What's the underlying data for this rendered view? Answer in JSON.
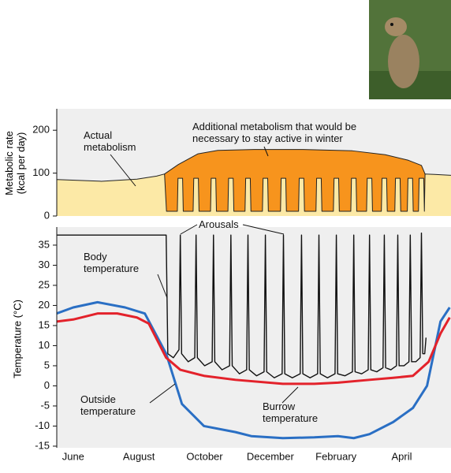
{
  "chart_data": [
    {
      "type": "area",
      "ylabel": "Metabolic rate (kcal per day)",
      "annotations": [
        "Actual metabolism",
        "Additional metabolism that would be necessary to stay active in winter"
      ],
      "xlim": [
        -0.5,
        11.5
      ],
      "ylim": [
        0,
        250
      ],
      "yticks": [
        0,
        100,
        200
      ],
      "grid": false,
      "series": [
        {
          "color": "#f7941d",
          "x": [
            2.78,
            3.2,
            3.8,
            4.4,
            5.5,
            7.0,
            8.5,
            9.5,
            10.2,
            10.6,
            10.71
          ],
          "values": [
            98,
            120,
            145,
            153,
            155,
            155,
            152,
            143,
            130,
            118,
            98
          ]
        },
        {
          "color": "#fce9a6",
          "x": [
            -0.5,
            0.85,
            1.94,
            2.54,
            2.78,
            2.84,
            3.17,
            3.19,
            3.33,
            3.35,
            3.65,
            3.67,
            3.81,
            3.83,
            4.18,
            4.2,
            4.34,
            4.36,
            4.71,
            4.73,
            4.87,
            4.89,
            5.23,
            5.25,
            5.39,
            5.41,
            5.76,
            5.78,
            5.92,
            5.94,
            6.31,
            6.33,
            6.47,
            6.49,
            6.86,
            6.88,
            7.02,
            7.04,
            7.39,
            7.41,
            7.55,
            7.57,
            7.92,
            7.94,
            8.08,
            8.1,
            8.45,
            8.47,
            8.61,
            8.63,
            8.93,
            8.95,
            9.09,
            9.11,
            9.38,
            9.4,
            9.54,
            9.56,
            9.79,
            9.81,
            9.95,
            9.97,
            10.17,
            10.19,
            10.33,
            10.35,
            10.51,
            10.53,
            10.67,
            10.69,
            10.71,
            11.0,
            11.5
          ],
          "values": [
            85,
            81,
            86,
            93,
            98,
            11,
            11,
            88,
            88,
            11,
            11,
            88,
            88,
            11,
            11,
            88,
            88,
            11,
            11,
            88,
            88,
            11,
            11,
            88,
            88,
            11,
            11,
            88,
            88,
            11,
            11,
            88,
            88,
            11,
            11,
            88,
            88,
            11,
            11,
            88,
            88,
            11,
            11,
            88,
            88,
            11,
            11,
            88,
            88,
            11,
            11,
            88,
            88,
            11,
            11,
            88,
            88,
            11,
            11,
            88,
            88,
            11,
            11,
            88,
            88,
            11,
            11,
            88,
            88,
            11,
            98,
            97,
            95
          ]
        }
      ]
    },
    {
      "type": "line",
      "ylabel": "Temperature (°C)",
      "annotations": [
        "Arousals"
      ],
      "xlim": [
        -0.5,
        11.5
      ],
      "ylim": [
        -15.4,
        39.5
      ],
      "yticks": [
        -15,
        -10,
        -5,
        0,
        5,
        10,
        15,
        20,
        25,
        30,
        35
      ],
      "grid": false,
      "xticks": [
        {
          "value": 0,
          "label": "June"
        },
        {
          "value": 2,
          "label": "August"
        },
        {
          "value": 4,
          "label": "October"
        },
        {
          "value": 6,
          "label": "December"
        },
        {
          "value": 8,
          "label": "February"
        },
        {
          "value": 10,
          "label": "April"
        }
      ],
      "series": [
        {
          "name": "Body temperature",
          "color": "#111111",
          "x": [
            -0.5,
            2.83,
            2.88,
            3.05,
            3.22,
            3.26,
            3.3,
            3.5,
            3.7,
            3.74,
            3.78,
            4.0,
            4.23,
            4.27,
            4.31,
            4.53,
            4.76,
            4.8,
            4.84,
            5.06,
            5.28,
            5.32,
            5.36,
            5.58,
            5.81,
            5.85,
            5.89,
            6.12,
            6.36,
            6.4,
            6.44,
            6.67,
            6.91,
            6.95,
            6.99,
            7.21,
            7.44,
            7.48,
            7.52,
            7.74,
            7.97,
            8.01,
            8.05,
            8.27,
            8.5,
            8.54,
            8.58,
            8.78,
            8.98,
            9.02,
            9.06,
            9.24,
            9.43,
            9.47,
            9.51,
            9.67,
            9.84,
            9.88,
            9.92,
            10.07,
            10.22,
            10.26,
            10.3,
            10.43,
            10.56,
            10.6,
            10.64,
            10.7,
            10.74
          ],
          "values": [
            37.5,
            37.5,
            8,
            7,
            9,
            37.5,
            8,
            6,
            7,
            37.5,
            7,
            5,
            6,
            37.5,
            6,
            4,
            5,
            37.5,
            5,
            3,
            4,
            37.5,
            4,
            2.5,
            3.5,
            37.5,
            3.5,
            2,
            3,
            37.5,
            3,
            2,
            3,
            37.5,
            3,
            2,
            3,
            37.5,
            3,
            2,
            3,
            37.5,
            3,
            2.5,
            3.5,
            37.5,
            3.5,
            3,
            4,
            37.5,
            4,
            3.5,
            4.5,
            37.5,
            4.5,
            4,
            5,
            37.5,
            5,
            5,
            6,
            37.5,
            6,
            6,
            7,
            38,
            8,
            8,
            12
          ]
        },
        {
          "name": "Outside temperature",
          "color": "#2a6fc4",
          "x": [
            -0.5,
            0,
            0.74,
            1.58,
            2.18,
            2.83,
            3.31,
            3.98,
            4.94,
            5.42,
            6.38,
            7.34,
            8.06,
            8.54,
            9.02,
            9.74,
            10.34,
            10.77,
            11.18,
            11.46
          ],
          "values": [
            18,
            19.5,
            20.8,
            19.5,
            18,
            8,
            -4.5,
            -10,
            -11.5,
            -12.5,
            -13,
            -12.8,
            -12.5,
            -13,
            -12,
            -9,
            -5.5,
            0,
            16,
            19.5
          ]
        },
        {
          "name": "Burrow temperature",
          "color": "#e3222b",
          "x": [
            -0.5,
            0,
            0.74,
            1.34,
            1.94,
            2.3,
            2.83,
            3.26,
            3.98,
            4.94,
            6.38,
            7.34,
            8.06,
            9.02,
            9.74,
            10.34,
            10.82,
            11.18,
            11.46
          ],
          "values": [
            16,
            16.5,
            18,
            18,
            17,
            15.5,
            7,
            4,
            2.5,
            1.5,
            0.5,
            0.5,
            0.8,
            1.5,
            2,
            2.5,
            6,
            13,
            17
          ]
        }
      ]
    }
  ]
}
